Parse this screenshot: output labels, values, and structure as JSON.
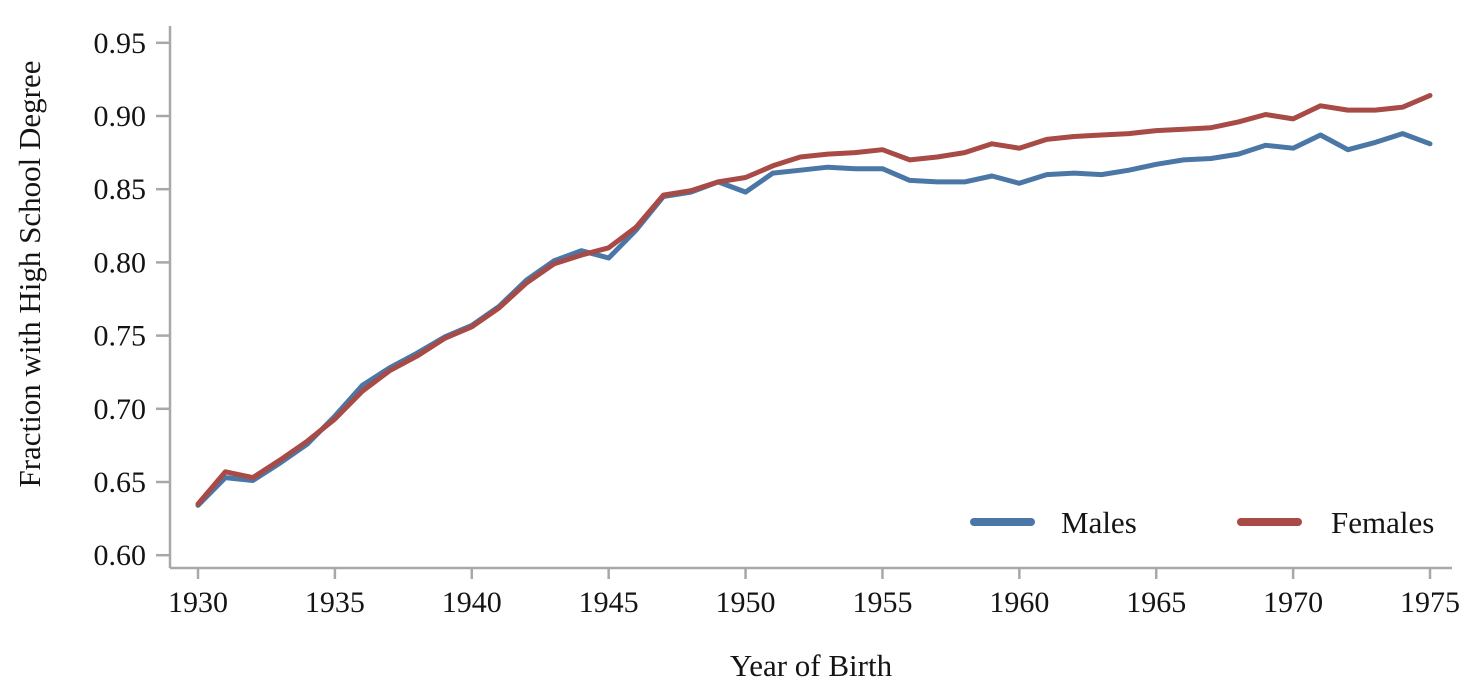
{
  "chart_data": {
    "type": "line",
    "title": "",
    "xlabel": "Year of Birth",
    "ylabel": "Fraction with High School Degree",
    "grid": false,
    "legend_position": "inside-bottom-right",
    "xlim": [
      1929,
      1976
    ],
    "ylim": [
      0.585,
      0.96
    ],
    "x_ticks": [
      1930,
      1935,
      1940,
      1945,
      1950,
      1955,
      1960,
      1965,
      1970,
      1975
    ],
    "x_tick_labels": [
      "1930",
      "1935",
      "1940",
      "1945",
      "1950",
      "1955",
      "1960",
      "1965",
      "1970",
      "1975"
    ],
    "y_ticks": [
      0.6,
      0.65,
      0.7,
      0.75,
      0.8,
      0.85,
      0.9,
      0.95
    ],
    "y_tick_labels": [
      "0.60",
      "0.65",
      "0.70",
      "0.75",
      "0.80",
      "0.85",
      "0.90",
      "0.95"
    ],
    "x": [
      1930,
      1931,
      1932,
      1933,
      1934,
      1935,
      1936,
      1937,
      1938,
      1939,
      1940,
      1941,
      1942,
      1943,
      1944,
      1945,
      1946,
      1947,
      1948,
      1949,
      1950,
      1951,
      1952,
      1953,
      1954,
      1955,
      1956,
      1957,
      1958,
      1959,
      1960,
      1961,
      1962,
      1963,
      1964,
      1965,
      1966,
      1967,
      1968,
      1969,
      1970,
      1971,
      1972,
      1973,
      1974,
      1975
    ],
    "series": [
      {
        "name": "Males",
        "color": "#4a77a5",
        "values": [
          0.634,
          0.653,
          0.651,
          0.663,
          0.676,
          0.695,
          0.716,
          0.728,
          0.738,
          0.749,
          0.757,
          0.77,
          0.788,
          0.801,
          0.808,
          0.803,
          0.822,
          0.845,
          0.848,
          0.855,
          0.848,
          0.861,
          0.863,
          0.865,
          0.864,
          0.864,
          0.856,
          0.855,
          0.855,
          0.859,
          0.854,
          0.86,
          0.861,
          0.86,
          0.863,
          0.867,
          0.87,
          0.871,
          0.874,
          0.88,
          0.878,
          0.887,
          0.877,
          0.882,
          0.888,
          0.881
        ]
      },
      {
        "name": "Females",
        "color": "#a84a46",
        "values": [
          0.635,
          0.657,
          0.653,
          0.665,
          0.678,
          0.693,
          0.712,
          0.726,
          0.736,
          0.748,
          0.756,
          0.769,
          0.786,
          0.799,
          0.805,
          0.81,
          0.824,
          0.846,
          0.849,
          0.855,
          0.858,
          0.866,
          0.872,
          0.874,
          0.875,
          0.877,
          0.87,
          0.872,
          0.875,
          0.881,
          0.878,
          0.884,
          0.886,
          0.887,
          0.888,
          0.89,
          0.891,
          0.892,
          0.896,
          0.901,
          0.898,
          0.907,
          0.904,
          0.904,
          0.906,
          0.914
        ]
      }
    ]
  },
  "legend": {
    "males_label": "Males",
    "females_label": "Females"
  },
  "colors": {
    "males": "#4a77a5",
    "females": "#a84a46",
    "axis": "#a8a8a8",
    "text": "#141414",
    "background": "#ffffff"
  }
}
